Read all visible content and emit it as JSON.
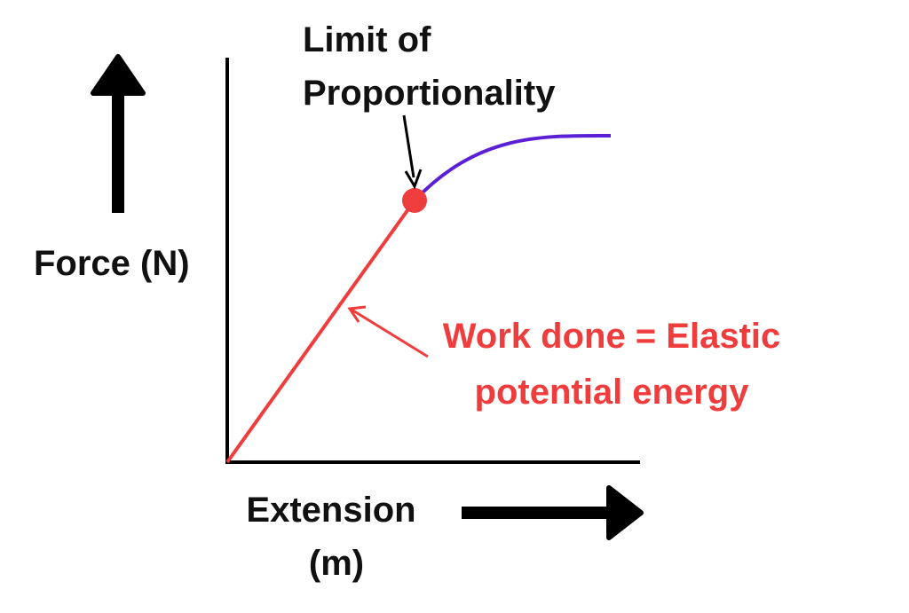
{
  "y_axis_label": "Force (N)",
  "x_axis_label": {
    "lines": [
      "Extension",
      "(m)"
    ]
  },
  "limit_annotation": {
    "lines": [
      "Limit of",
      "Proportionality"
    ]
  },
  "work_annotation": {
    "lines": [
      "Work done = Elastic",
      "potential energy"
    ]
  }
}
